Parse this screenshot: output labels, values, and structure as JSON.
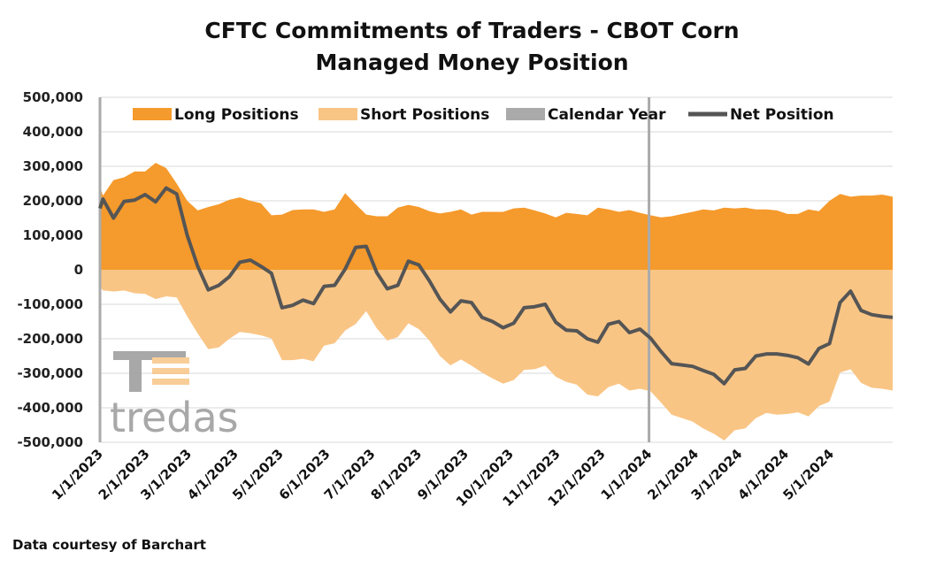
{
  "title_line1": "CFTC Commitments of Traders - CBOT Corn",
  "title_line2": "Managed Money Position",
  "footer": "Data courtesy of Barchart",
  "logo_text": "tredas",
  "colors": {
    "long": "#f59a2c",
    "short": "#f9c585",
    "calendar": "#aaaaaa",
    "net": "#555555",
    "grid": "#d9d9d9"
  },
  "chart_data": {
    "type": "area",
    "title": "CFTC Commitments of Traders - CBOT Corn Managed Money Position",
    "ylim": [
      -500000,
      500000
    ],
    "yticks": [
      500000,
      400000,
      300000,
      200000,
      100000,
      0,
      -100000,
      -200000,
      -300000,
      -400000,
      -500000
    ],
    "ytick_labels": [
      "500,000",
      "400,000",
      "300,000",
      "200,000",
      "100,000",
      "0",
      "-100,000",
      "-200,000",
      "-300,000",
      "-400,000",
      "-500,000"
    ],
    "xlim": [
      "2023-01-01",
      "2024-06-11"
    ],
    "xtick_dates": [
      "2023-01-01",
      "2023-02-01",
      "2023-03-01",
      "2023-04-01",
      "2023-05-01",
      "2023-06-01",
      "2023-07-01",
      "2023-08-01",
      "2023-09-01",
      "2023-10-01",
      "2023-11-01",
      "2023-12-01",
      "2024-01-01",
      "2024-02-01",
      "2024-03-01",
      "2024-04-01",
      "2024-05-01"
    ],
    "xtick_labels": [
      "1/1/2023",
      "2/1/2023",
      "3/1/2023",
      "4/1/2023",
      "5/1/2023",
      "6/1/2023",
      "7/1/2023",
      "8/1/2023",
      "9/1/2023",
      "10/1/2023",
      "11/1/2023",
      "12/1/2023",
      "1/1/2024",
      "2/1/2024",
      "3/1/2024",
      "4/1/2024",
      "5/1/2024"
    ],
    "calendar_year_lines": [
      "2023-01-01",
      "2024-01-01"
    ],
    "legend": [
      "Long Positions",
      "Short Positions",
      "Calendar Year",
      "Net Position"
    ],
    "legend_position": "top",
    "grid": true,
    "x": [
      "2022-12-27",
      "2023-01-03",
      "2023-01-10",
      "2023-01-17",
      "2023-01-24",
      "2023-01-31",
      "2023-02-07",
      "2023-02-14",
      "2023-02-21",
      "2023-02-28",
      "2023-03-07",
      "2023-03-14",
      "2023-03-21",
      "2023-03-28",
      "2023-04-04",
      "2023-04-11",
      "2023-04-18",
      "2023-04-25",
      "2023-05-02",
      "2023-05-09",
      "2023-05-16",
      "2023-05-23",
      "2023-05-30",
      "2023-06-06",
      "2023-06-13",
      "2023-06-20",
      "2023-06-27",
      "2023-07-04",
      "2023-07-11",
      "2023-07-18",
      "2023-07-25",
      "2023-08-01",
      "2023-08-08",
      "2023-08-15",
      "2023-08-22",
      "2023-08-29",
      "2023-09-05",
      "2023-09-12",
      "2023-09-19",
      "2023-09-26",
      "2023-10-03",
      "2023-10-10",
      "2023-10-17",
      "2023-10-24",
      "2023-10-31",
      "2023-11-07",
      "2023-11-14",
      "2023-11-21",
      "2023-11-28",
      "2023-12-05",
      "2023-12-12",
      "2023-12-19",
      "2023-12-26",
      "2024-01-02",
      "2024-01-09",
      "2024-01-16",
      "2024-01-23",
      "2024-01-30",
      "2024-02-06",
      "2024-02-13",
      "2024-02-20",
      "2024-02-27",
      "2024-03-05",
      "2024-03-12",
      "2024-03-19",
      "2024-03-26",
      "2024-04-02",
      "2024-04-09",
      "2024-04-16",
      "2024-04-23",
      "2024-04-30",
      "2024-05-07",
      "2024-05-14",
      "2024-05-21",
      "2024-05-28",
      "2024-06-04",
      "2024-06-11"
    ],
    "series": [
      {
        "name": "Long Positions",
        "values": [
          240000,
          215000,
          260000,
          268000,
          285000,
          285000,
          310000,
          295000,
          250000,
          200000,
          172000,
          182000,
          190000,
          203000,
          210000,
          200000,
          193000,
          158000,
          160000,
          173000,
          175000,
          175000,
          168000,
          175000,
          222000,
          190000,
          160000,
          155000,
          155000,
          180000,
          188000,
          182000,
          170000,
          163000,
          168000,
          175000,
          160000,
          168000,
          168000,
          168000,
          178000,
          180000,
          172000,
          163000,
          152000,
          165000,
          162000,
          158000,
          180000,
          175000,
          168000,
          173000,
          165000,
          158000,
          152000,
          155000,
          162000,
          168000,
          175000,
          172000,
          180000,
          178000,
          180000,
          175000,
          175000,
          172000,
          162000,
          162000,
          175000,
          170000,
          200000,
          220000,
          212000,
          215000,
          215000,
          218000,
          212000
        ]
      },
      {
        "name": "Short Positions",
        "values": [
          -50000,
          -60000,
          -63000,
          -60000,
          -68000,
          -70000,
          -85000,
          -77000,
          -80000,
          -135000,
          -185000,
          -230000,
          -225000,
          -200000,
          -180000,
          -184000,
          -190000,
          -199000,
          -262000,
          -262000,
          -258000,
          -265000,
          -220000,
          -213000,
          -176000,
          -157000,
          -120000,
          -170000,
          -205000,
          -195000,
          -155000,
          -172000,
          -205000,
          -250000,
          -277000,
          -260000,
          -278000,
          -298000,
          -315000,
          -330000,
          -320000,
          -290000,
          -288000,
          -278000,
          -310000,
          -325000,
          -333000,
          -362000,
          -367000,
          -340000,
          -330000,
          -350000,
          -345000,
          -352000,
          -385000,
          -420000,
          -430000,
          -440000,
          -460000,
          -475000,
          -495000,
          -465000,
          -460000,
          -430000,
          -415000,
          -420000,
          -418000,
          -413000,
          -425000,
          -395000,
          -382000,
          -298000,
          -288000,
          -328000,
          -342000,
          -345000,
          -350000
        ]
      },
      {
        "name": "Net Position",
        "values": [
          178000,
          205000,
          150000,
          198000,
          202000,
          218000,
          197000,
          237000,
          220000,
          100000,
          10000,
          -58000,
          -45000,
          -20000,
          22000,
          28000,
          10000,
          -10000,
          -110000,
          -103000,
          -88000,
          -98000,
          -48000,
          -45000,
          2000,
          65000,
          68000,
          -8000,
          -55000,
          -45000,
          25000,
          14000,
          -32000,
          -85000,
          -122000,
          -90000,
          -95000,
          -138000,
          -150000,
          -168000,
          -155000,
          -110000,
          -107000,
          -100000,
          -152000,
          -175000,
          -177000,
          -200000,
          -210000,
          -158000,
          -150000,
          -182000,
          -172000,
          -198000,
          -237000,
          -272000,
          -276000,
          -280000,
          -292000,
          -303000,
          -330000,
          -290000,
          -286000,
          -250000,
          -244000,
          -244000,
          -248000,
          -255000,
          -273000,
          -228000,
          -214000,
          -95000,
          -62000,
          -118000,
          -130000,
          -135000,
          -138000
        ]
      }
    ]
  }
}
